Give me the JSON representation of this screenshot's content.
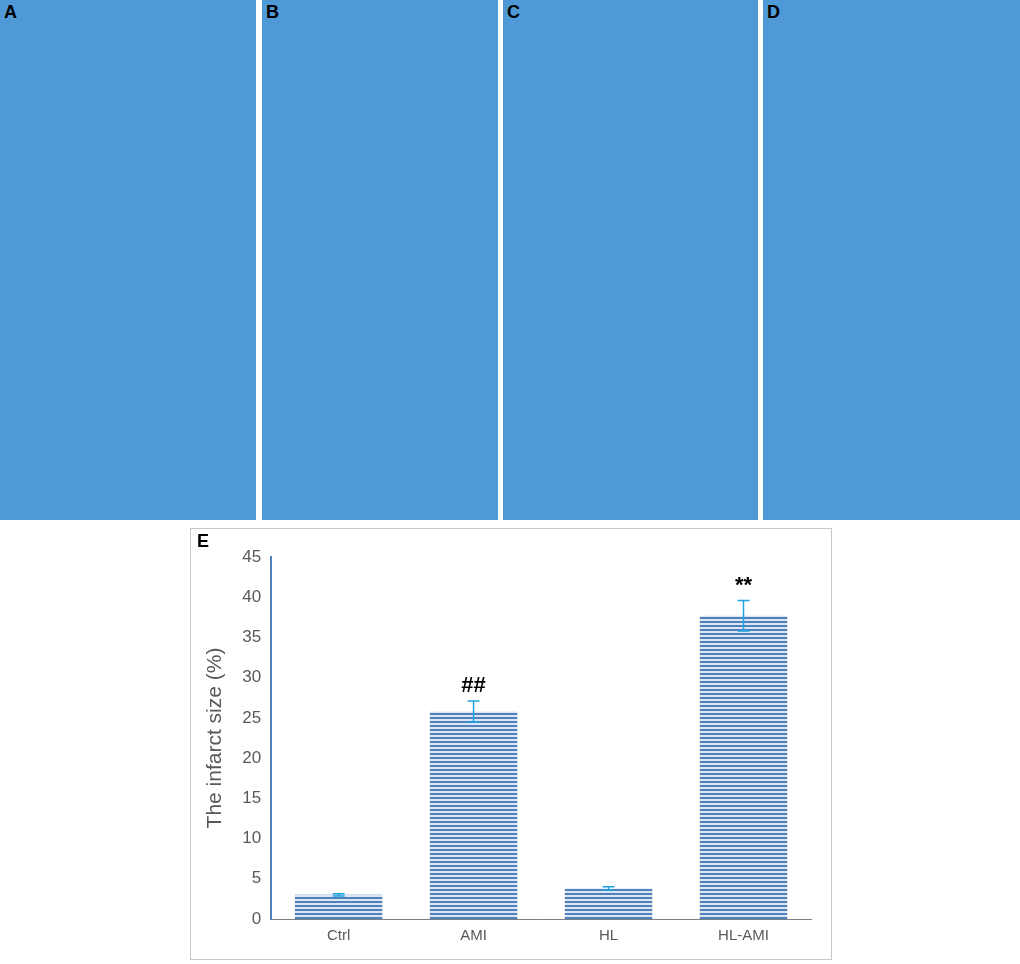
{
  "panels": [
    "A",
    "B",
    "C",
    "D"
  ],
  "chart_data": {
    "type": "bar",
    "title": "E",
    "y_label": "The infarct size (%)",
    "categories": [
      "Ctrl",
      "AMI",
      "HL",
      "HL-AMI"
    ],
    "values": [
      3.0,
      25.8,
      3.8,
      37.7
    ],
    "errors": [
      0.15,
      1.3,
      0.2,
      1.9
    ],
    "annotations": [
      {
        "category": "AMI",
        "text": "##"
      },
      {
        "category": "HL-AMI",
        "text": "**"
      }
    ],
    "color": "#4f81bd",
    "ylim": [
      0,
      45
    ],
    "yticks": [
      0,
      5,
      10,
      15,
      20,
      25,
      30,
      35,
      40,
      45
    ],
    "grid": false
  }
}
